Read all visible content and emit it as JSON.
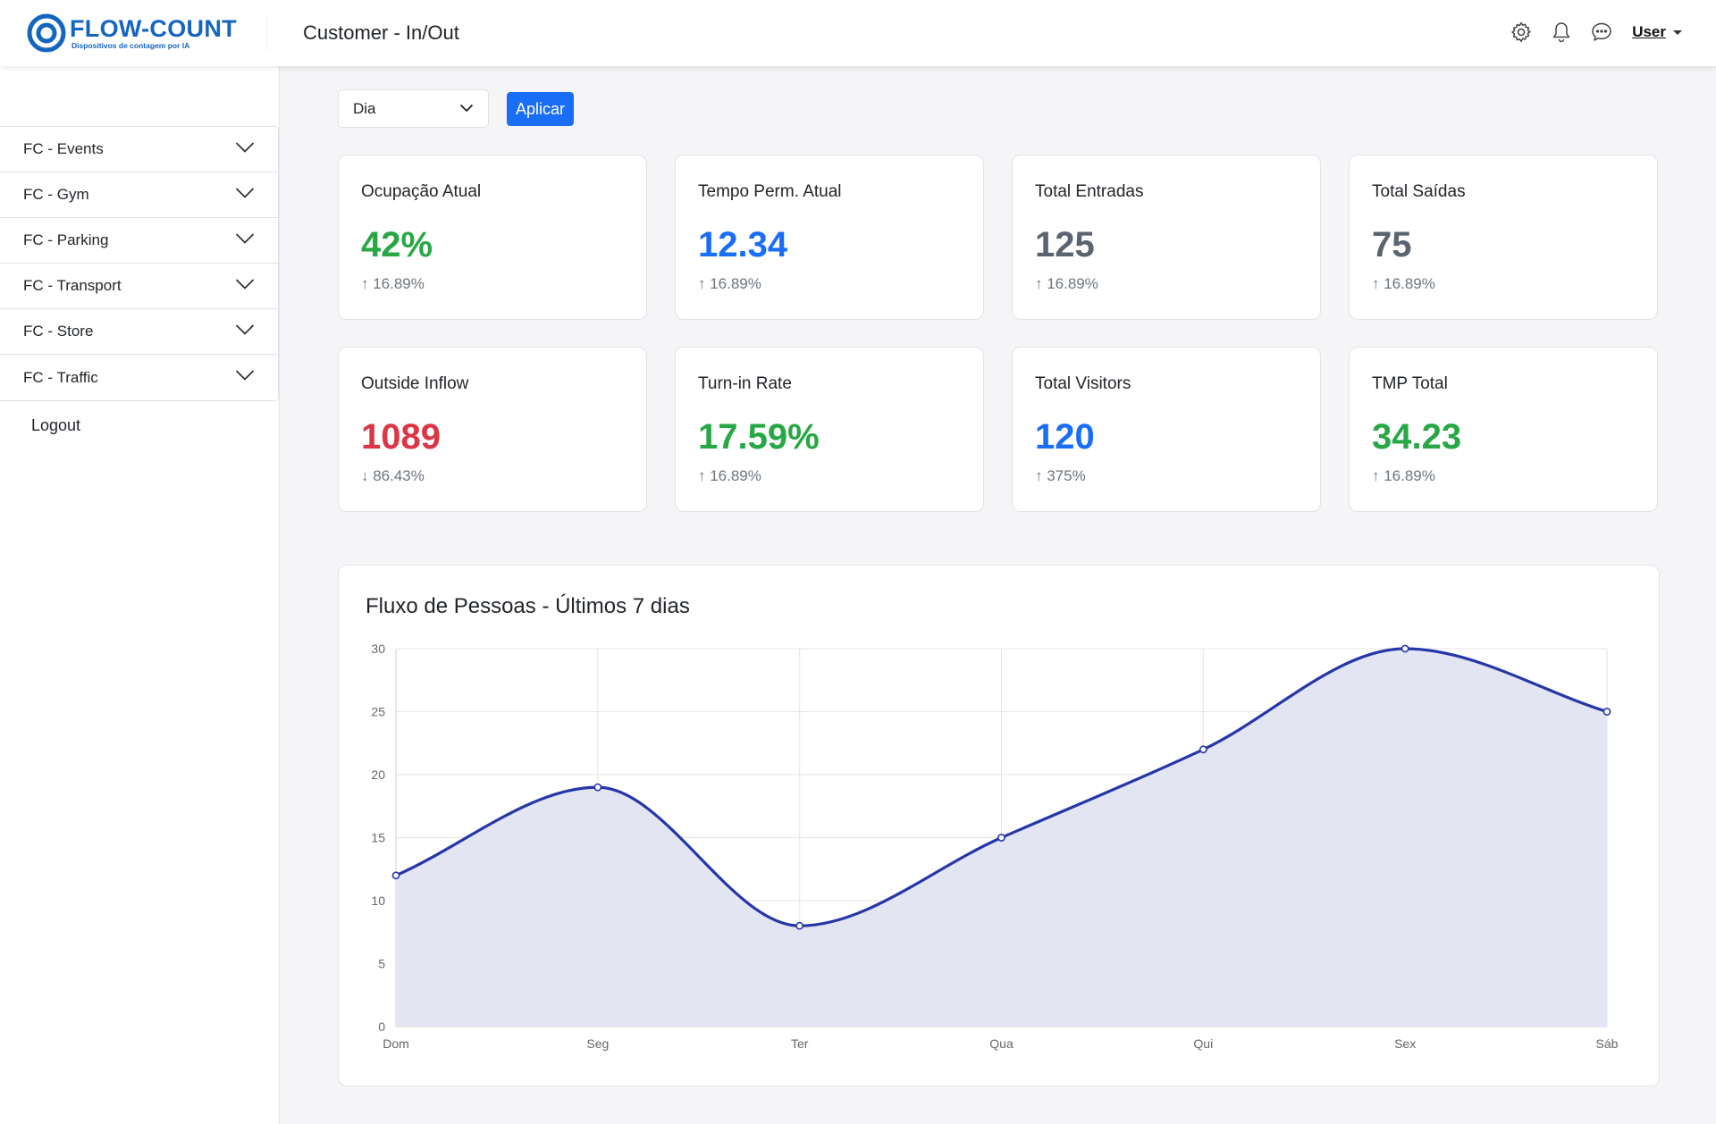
{
  "brand": {
    "name": "FLOW-COUNT",
    "tagline": "Dispositivos de contagem por IA",
    "color": "#1565c0"
  },
  "header": {
    "title": "Customer - In/Out",
    "icons": [
      "gear-icon",
      "bell-icon",
      "chat-icon"
    ],
    "user_label": "User"
  },
  "sidebar": {
    "items": [
      {
        "label": "FC - Events"
      },
      {
        "label": "FC - Gym"
      },
      {
        "label": "FC - Parking"
      },
      {
        "label": "FC - Transport"
      },
      {
        "label": "FC - Store"
      },
      {
        "label": "FC - Traffic"
      }
    ],
    "logout_label": "Logout"
  },
  "filter": {
    "period_value": "Dia",
    "apply_label": "Aplicar",
    "apply_color": "#1a6ef5"
  },
  "kpis": [
    {
      "title": "Ocupação Atual",
      "value": "42%",
      "change": "↑ 16.89%",
      "color": "green"
    },
    {
      "title": "Tempo Perm. Atual",
      "value": "12.34",
      "change": "↑ 16.89%",
      "color": "blue"
    },
    {
      "title": "Total Entradas",
      "value": "125",
      "change": "↑ 16.89%",
      "color": "gray"
    },
    {
      "title": "Total Saídas",
      "value": "75",
      "change": "↑ 16.89%",
      "color": "gray"
    },
    {
      "title": "Outside Inflow",
      "value": "1089",
      "change": "↓ 86.43%",
      "color": "red"
    },
    {
      "title": "Turn-in Rate",
      "value": "17.59%",
      "change": "↑ 16.89%",
      "color": "green"
    },
    {
      "title": "Total Visitors",
      "value": "120",
      "change": "↑ 375%",
      "color": "blue"
    },
    {
      "title": "TMP Total",
      "value": "34.23",
      "change": "↑ 16.89%",
      "color": "green"
    }
  ],
  "chart": {
    "title": "Fluxo de Pessoas - Últimos 7 dias"
  },
  "chart_data": {
    "type": "area",
    "categories": [
      "Dom",
      "Seg",
      "Ter",
      "Qua",
      "Qui",
      "Sex",
      "Sáb"
    ],
    "values": [
      12,
      19,
      8,
      15,
      22,
      30,
      25
    ],
    "ylim": [
      0,
      30
    ],
    "yticks": [
      0,
      5,
      10,
      15,
      20,
      25,
      30
    ],
    "grid": true,
    "smooth": true,
    "line_color": "#2536a8",
    "fill_color": "#e3e5f3"
  }
}
